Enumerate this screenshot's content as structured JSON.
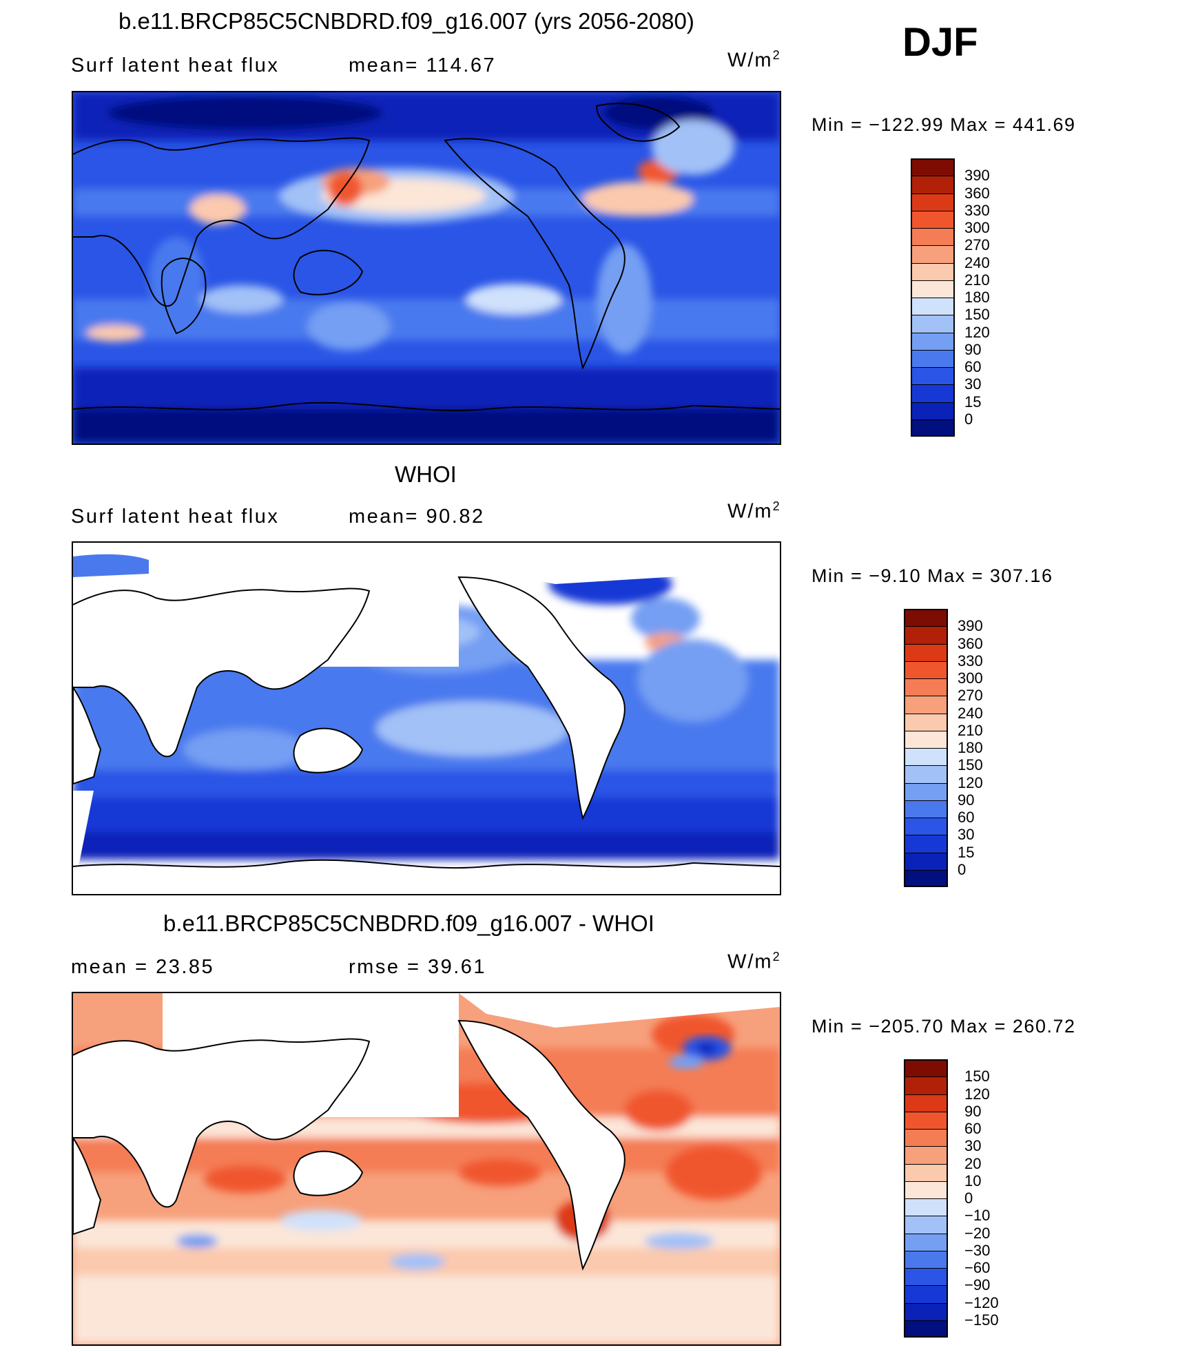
{
  "season": "DJF",
  "units": "W/m",
  "units_sup": "2",
  "panels": [
    {
      "title": "b.e11.BRCP85C5CNBDRD.f09_g16.007 (yrs 2056-2080)",
      "left_label": "Surf latent heat flux",
      "right_label": "mean= 114.67",
      "min_max": "Min = −122.99 Max = 441.69",
      "colors": [
        "#020f7e",
        "#0a22b8",
        "#1639d5",
        "#2a55e6",
        "#4a79ee",
        "#749ff3",
        "#a2c1f7",
        "#cfe1fb",
        "#fbe6d8",
        "#fbc9ad",
        "#f7a07c",
        "#f47d55",
        "#f0562e",
        "#dc3a17",
        "#b02108",
        "#7d0d02"
      ],
      "ticks": [
        "390",
        "360",
        "330",
        "300",
        "270",
        "240",
        "210",
        "180",
        "150",
        "120",
        "90",
        "60",
        "30",
        "15",
        "0"
      ]
    },
    {
      "title": "WHOI",
      "left_label": "Surf latent heat flux",
      "right_label": "mean=  90.82",
      "min_max": "Min =  −9.10 Max = 307.16",
      "colors": [
        "#020f7e",
        "#0a22b8",
        "#1639d5",
        "#2a55e6",
        "#4a79ee",
        "#749ff3",
        "#a2c1f7",
        "#cfe1fb",
        "#fbe6d8",
        "#fbc9ad",
        "#f7a07c",
        "#f47d55",
        "#f0562e",
        "#dc3a17",
        "#b02108",
        "#7d0d02"
      ],
      "ticks": [
        "390",
        "360",
        "330",
        "300",
        "270",
        "240",
        "210",
        "180",
        "150",
        "120",
        "90",
        "60",
        "30",
        "15",
        "0"
      ]
    },
    {
      "title": "b.e11.BRCP85C5CNBDRD.f09_g16.007 - WHOI",
      "left_label": "mean =   23.85",
      "right_label": "rmse =   39.61",
      "min_max": "Min = −205.70 Max = 260.72",
      "colors": [
        "#020f7e",
        "#0a22b8",
        "#1639d5",
        "#2a55e6",
        "#4a79ee",
        "#749ff3",
        "#a2c1f7",
        "#cfe1fb",
        "#fbe6d8",
        "#fbc9ad",
        "#f7a07c",
        "#f47d55",
        "#f0562e",
        "#dc3a17",
        "#b02108",
        "#7d0d02"
      ],
      "ticks": [
        "150",
        "120",
        "90",
        "60",
        "30",
        "20",
        "10",
        "0",
        "−10",
        "−20",
        "−30",
        "−60",
        "−90",
        "−120",
        "−150"
      ]
    }
  ]
}
